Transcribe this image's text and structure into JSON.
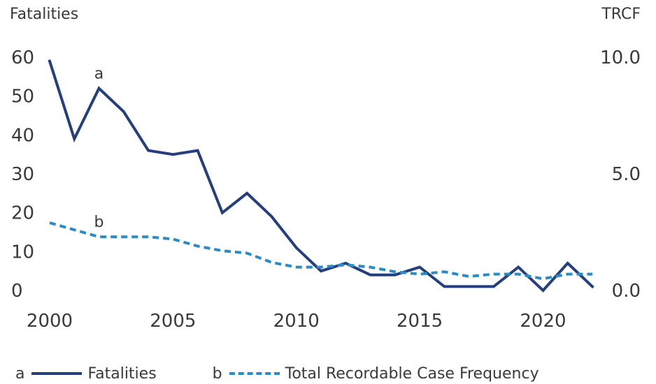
{
  "chart_data": {
    "type": "line",
    "y_left_title": "Fatalities",
    "y_right_title": "TRCF",
    "x": [
      2000,
      2001,
      2002,
      2003,
      2004,
      2005,
      2006,
      2007,
      2008,
      2009,
      2010,
      2011,
      2012,
      2013,
      2014,
      2015,
      2016,
      2017,
      2018,
      2019,
      2020,
      2021,
      2022
    ],
    "x_ticks": [
      "2000",
      "2005",
      "2010",
      "2015",
      "2020"
    ],
    "y_left_ticks": [
      "0",
      "10",
      "20",
      "30",
      "40",
      "50",
      "60"
    ],
    "y_left_lim": [
      0,
      60
    ],
    "y_right_ticks": [
      "0.0",
      "5.0",
      "10.0"
    ],
    "y_right_lim": [
      0,
      10
    ],
    "series": [
      {
        "key": "a",
        "name": "Fatalities",
        "axis": "left",
        "style": "solid",
        "color": "#253f7e",
        "values": [
          59,
          39,
          52,
          46,
          36,
          35,
          36,
          20,
          25,
          19,
          11,
          5,
          7,
          4,
          4,
          6,
          1,
          1,
          1,
          6,
          0,
          7,
          1
        ]
      },
      {
        "key": "b",
        "name": "Total Recordable Case Frequency",
        "axis": "right",
        "style": "dashed",
        "color": "#2a8bc7",
        "values": [
          2.9,
          2.6,
          2.3,
          2.3,
          2.3,
          2.2,
          1.9,
          1.7,
          1.6,
          1.2,
          1.0,
          1.0,
          1.1,
          1.0,
          0.8,
          0.7,
          0.8,
          0.6,
          0.7,
          0.7,
          0.5,
          0.7,
          0.7
        ]
      }
    ],
    "annotations": [
      {
        "text": "a",
        "series": "a",
        "x": 2002
      },
      {
        "text": "b",
        "series": "b",
        "x": 2002
      }
    ],
    "grid": false,
    "legend_position": "bottom-left"
  }
}
